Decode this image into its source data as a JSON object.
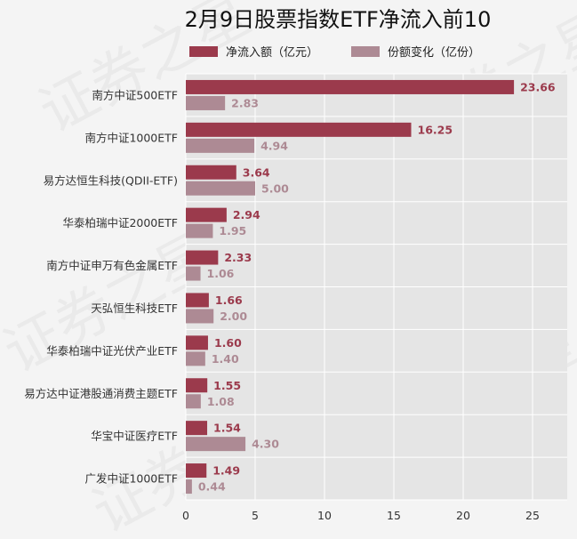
{
  "chart_data": {
    "type": "bar",
    "orientation": "horizontal",
    "title": "2月9日股票指数ETF净流入前10",
    "categories": [
      "南方中证500ETF",
      "南方中证1000ETF",
      "易方达恒生科技(QDII-ETF)",
      "华泰柏瑞中证2000ETF",
      "南方中证申万有色金属ETF",
      "天弘恒生科技ETF",
      "华泰柏瑞中证光伏产业ETF",
      "易方达中证港股通消费主题ETF",
      "华宝中证医疗ETF",
      "广发中证1000ETF"
    ],
    "series": [
      {
        "name": "净流入额（亿元）",
        "color": "#9b3a4c",
        "values": [
          23.66,
          16.25,
          3.64,
          2.94,
          2.33,
          1.66,
          1.6,
          1.55,
          1.54,
          1.49
        ],
        "labels": [
          "23.66",
          "16.25",
          "3.64",
          "2.94",
          "2.33",
          "1.66",
          "1.60",
          "1.55",
          "1.54",
          "1.49"
        ]
      },
      {
        "name": "份额变化（亿份）",
        "color": "#ad8a94",
        "values": [
          2.83,
          4.94,
          5.0,
          1.95,
          1.06,
          2.0,
          1.4,
          1.08,
          4.3,
          0.44
        ],
        "labels": [
          "2.83",
          "4.94",
          "5.00",
          "1.95",
          "1.06",
          "2.00",
          "1.40",
          "1.08",
          "4.30",
          "0.44"
        ]
      }
    ],
    "xlim": [
      0,
      27.5
    ],
    "xticks": [
      0,
      5,
      10,
      15,
      20,
      25
    ],
    "xtick_labels": [
      "0",
      "5",
      "10",
      "15",
      "20",
      "25"
    ],
    "grid": true,
    "plot_background": "#e5e5e5",
    "legend_position": "top"
  },
  "watermark": {
    "text": "证券之星"
  }
}
